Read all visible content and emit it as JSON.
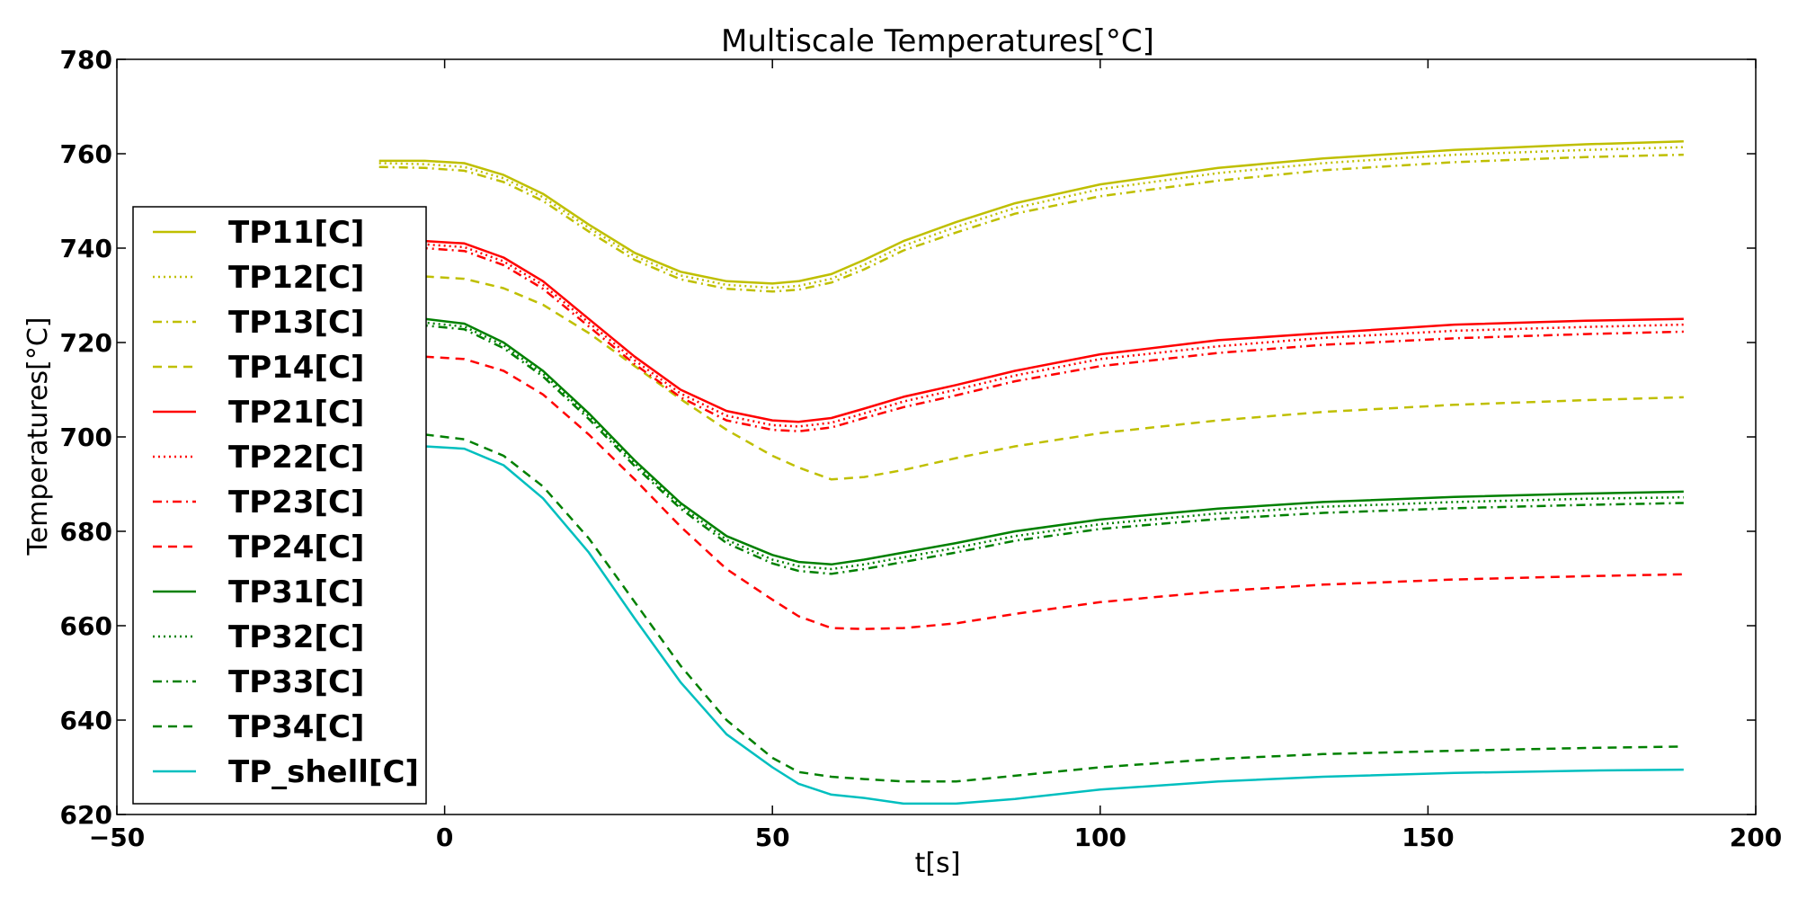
{
  "chart_data": {
    "type": "line",
    "title": "Multiscale Temperatures[°C]",
    "xlabel": "t[s]",
    "ylabel": "Temperatures[°C]",
    "xlim": [
      -50,
      200
    ],
    "ylim": [
      620,
      780
    ],
    "xticks": [
      -50,
      0,
      50,
      100,
      150,
      200
    ],
    "yticks": [
      620,
      640,
      660,
      680,
      700,
      720,
      740,
      760,
      780
    ],
    "xtick_labels": [
      "−50",
      "0",
      "50",
      "100",
      "150",
      "200"
    ],
    "ytick_labels": [
      "620",
      "640",
      "660",
      "680",
      "700",
      "720",
      "740",
      "760",
      "780"
    ],
    "grid": false,
    "legend_position": "left",
    "x": [
      -10,
      -3,
      3,
      9,
      15,
      22,
      29,
      36,
      43,
      50,
      54,
      59,
      64,
      70,
      78,
      87,
      100,
      118,
      134,
      154,
      174,
      189
    ],
    "series": [
      {
        "name": "TP11[C]",
        "color": "#bfbf00",
        "style": "solid",
        "values": [
          758.5,
          758.5,
          758.0,
          755.5,
          751.5,
          745.0,
          739.0,
          735.0,
          733.0,
          732.5,
          733.0,
          734.5,
          737.5,
          741.5,
          745.5,
          749.5,
          753.5,
          757.0,
          759.0,
          760.8,
          762.0,
          762.6
        ]
      },
      {
        "name": "TP12[C]",
        "color": "#bfbf00",
        "style": "dotted",
        "values": [
          758.0,
          757.8,
          757.2,
          754.8,
          750.8,
          744.3,
          738.3,
          734.2,
          732.2,
          731.6,
          732.0,
          733.5,
          736.5,
          740.5,
          744.5,
          748.5,
          752.5,
          755.9,
          758.0,
          759.8,
          760.8,
          761.4
        ]
      },
      {
        "name": "TP13[C]",
        "color": "#bfbf00",
        "style": "dashdot",
        "values": [
          757.2,
          757.0,
          756.4,
          754.0,
          750.0,
          743.5,
          737.5,
          733.4,
          731.4,
          730.8,
          731.2,
          732.7,
          735.5,
          739.5,
          743.3,
          747.3,
          751.0,
          754.3,
          756.5,
          758.2,
          759.3,
          759.8
        ]
      },
      {
        "name": "TP14[C]",
        "color": "#bfbf00",
        "style": "dashed",
        "values": [
          734.0,
          734.0,
          733.5,
          731.5,
          728.0,
          722.0,
          715.0,
          708.0,
          701.5,
          696.0,
          693.5,
          691.0,
          691.5,
          693.0,
          695.5,
          698.0,
          700.8,
          703.5,
          705.3,
          706.8,
          707.8,
          708.4
        ]
      },
      {
        "name": "TP21[C]",
        "color": "#ff0000",
        "style": "solid",
        "values": [
          741.5,
          741.5,
          741.0,
          738.0,
          733.0,
          725.0,
          717.0,
          710.0,
          705.5,
          703.5,
          703.2,
          704.0,
          706.0,
          708.5,
          711.0,
          714.0,
          717.5,
          720.5,
          722.0,
          723.8,
          724.6,
          725.0
        ]
      },
      {
        "name": "TP22[C]",
        "color": "#ff0000",
        "style": "dotted",
        "values": [
          741.0,
          740.8,
          740.2,
          737.2,
          732.2,
          724.2,
          716.2,
          709.2,
          704.5,
          702.5,
          702.2,
          703.0,
          705.0,
          707.5,
          710.0,
          713.0,
          716.5,
          719.2,
          721.0,
          722.5,
          723.3,
          723.8
        ]
      },
      {
        "name": "TP23[C]",
        "color": "#ff0000",
        "style": "dashdot",
        "values": [
          740.2,
          740.0,
          739.4,
          736.4,
          731.4,
          723.4,
          715.4,
          708.4,
          703.5,
          701.5,
          701.2,
          702.0,
          704.0,
          706.3,
          708.8,
          711.8,
          715.0,
          717.8,
          719.5,
          720.9,
          721.8,
          722.3
        ]
      },
      {
        "name": "TP24[C]",
        "color": "#ff0000",
        "style": "dashed",
        "values": [
          717.0,
          717.0,
          716.5,
          714.0,
          709.0,
          700.5,
          691.0,
          681.0,
          672.0,
          665.5,
          662.0,
          659.5,
          659.3,
          659.5,
          660.5,
          662.5,
          665.0,
          667.3,
          668.7,
          669.8,
          670.5,
          670.9
        ]
      },
      {
        "name": "TP31[C]",
        "color": "#008000",
        "style": "solid",
        "values": [
          725.0,
          725.0,
          724.0,
          720.0,
          714.0,
          705.0,
          695.0,
          686.0,
          679.0,
          675.0,
          673.5,
          673.0,
          674.0,
          675.5,
          677.5,
          680.0,
          682.5,
          684.8,
          686.2,
          687.3,
          688.0,
          688.4
        ]
      },
      {
        "name": "TP32[C]",
        "color": "#008000",
        "style": "dotted",
        "values": [
          724.4,
          724.2,
          723.4,
          719.4,
          713.4,
          704.4,
          694.4,
          685.4,
          678.2,
          674.0,
          672.6,
          672.0,
          673.0,
          674.5,
          676.5,
          679.0,
          681.5,
          683.8,
          685.2,
          686.2,
          686.9,
          687.2
        ]
      },
      {
        "name": "TP33[C]",
        "color": "#008000",
        "style": "dashdot",
        "values": [
          723.8,
          723.6,
          722.8,
          718.8,
          712.8,
          703.8,
          693.8,
          684.8,
          677.5,
          673.2,
          671.6,
          671.0,
          672.0,
          673.5,
          675.5,
          678.0,
          680.5,
          682.6,
          683.9,
          684.9,
          685.6,
          686.0
        ]
      },
      {
        "name": "TP34[C]",
        "color": "#008000",
        "style": "dashed",
        "values": [
          701.0,
          700.5,
          699.5,
          696.0,
          689.5,
          678.5,
          665.0,
          651.5,
          640.0,
          632.0,
          629.0,
          628.0,
          627.5,
          627.0,
          627.0,
          628.2,
          630.0,
          631.8,
          632.8,
          633.5,
          634.1,
          634.4
        ]
      },
      {
        "name": "TP_shell[C]",
        "color": "#00bfbf",
        "style": "solid",
        "values": [
          698.0,
          698.0,
          697.5,
          694.0,
          687.0,
          675.5,
          661.5,
          648.0,
          637.0,
          630.0,
          626.5,
          624.2,
          623.5,
          622.3,
          622.3,
          623.3,
          625.3,
          627.0,
          628.0,
          628.8,
          629.3,
          629.5
        ]
      }
    ]
  }
}
